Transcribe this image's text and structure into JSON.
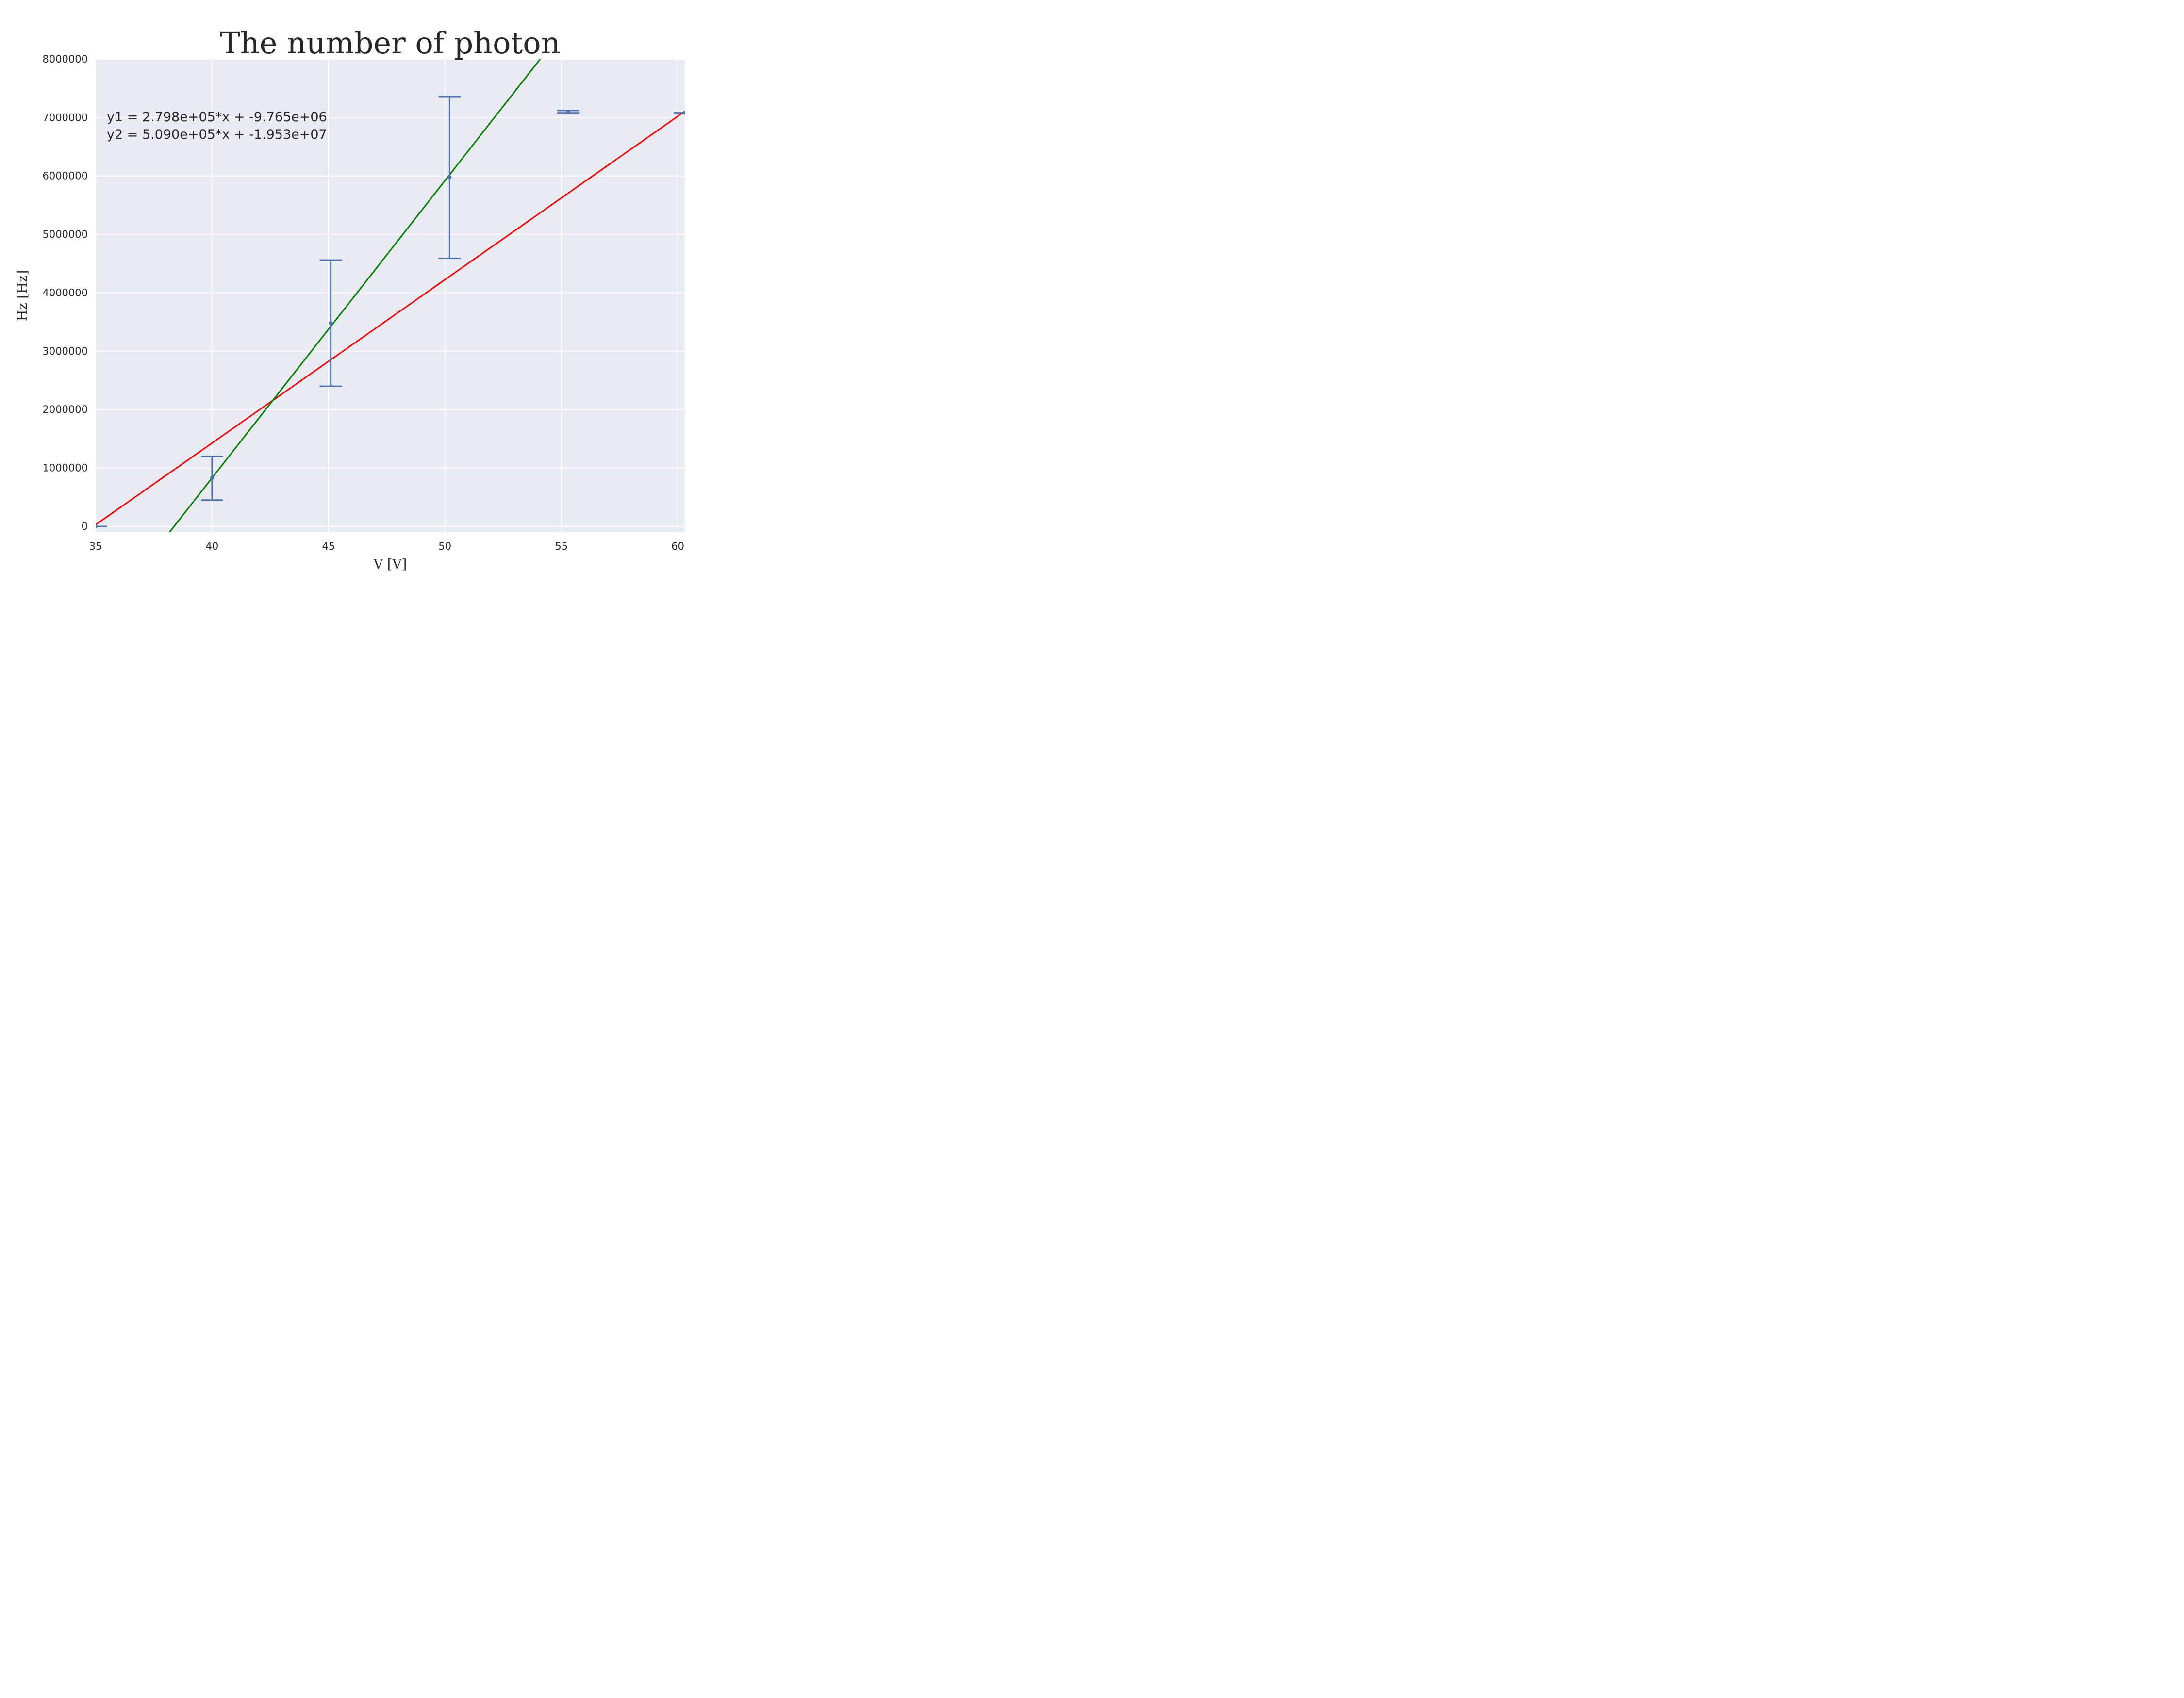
{
  "chart_data": {
    "type": "scatter",
    "title": "The number of photon",
    "xlabel": "V [V]",
    "ylabel": "Hz [Hz]",
    "xlim": [
      35,
      60.3
    ],
    "ylim": [
      -100000,
      8000000
    ],
    "xticks": [
      35,
      40,
      45,
      50,
      55,
      60
    ],
    "yticks": [
      0,
      1000000,
      2000000,
      3000000,
      4000000,
      5000000,
      6000000,
      7000000,
      8000000
    ],
    "x_tick_labels": [
      "35",
      "40",
      "45",
      "50",
      "55",
      "60"
    ],
    "y_tick_labels": [
      "0",
      "1000000",
      "2000000",
      "3000000",
      "4000000",
      "5000000",
      "6000000",
      "7000000",
      "8000000"
    ],
    "grid": true,
    "background_color": "#eaeaf2",
    "series": [
      {
        "type": "errorbar",
        "color": "#4c72b0",
        "points": [
          {
            "x": 35.0,
            "y": 0,
            "yerr": 0,
            "cap_only": true
          },
          {
            "x": 40.0,
            "y": 830000,
            "yerr_low": 380000,
            "yerr_high": 370000
          },
          {
            "x": 45.1,
            "y": 3480000,
            "yerr_low": 1080000,
            "yerr_high": 1080000
          },
          {
            "x": 50.2,
            "y": 5980000,
            "yerr_low": 1390000,
            "yerr_high": 1380000
          },
          {
            "x": 55.3,
            "y": 7100000,
            "yerr_low": 20000,
            "yerr_high": 20000
          },
          {
            "x": 60.3,
            "y": 7080000,
            "yerr_low": 0,
            "yerr_high": 0
          }
        ]
      },
      {
        "type": "line",
        "color": "#ff0000",
        "slope": 279800,
        "intercept": -9765000
      },
      {
        "type": "line",
        "color": "#008000",
        "slope": 509000,
        "intercept": -19530000
      }
    ],
    "annotations": [
      "y1 = 2.798e+05*x + -9.765e+06",
      "y2 = 5.090e+05*x + -1.953e+07"
    ]
  }
}
